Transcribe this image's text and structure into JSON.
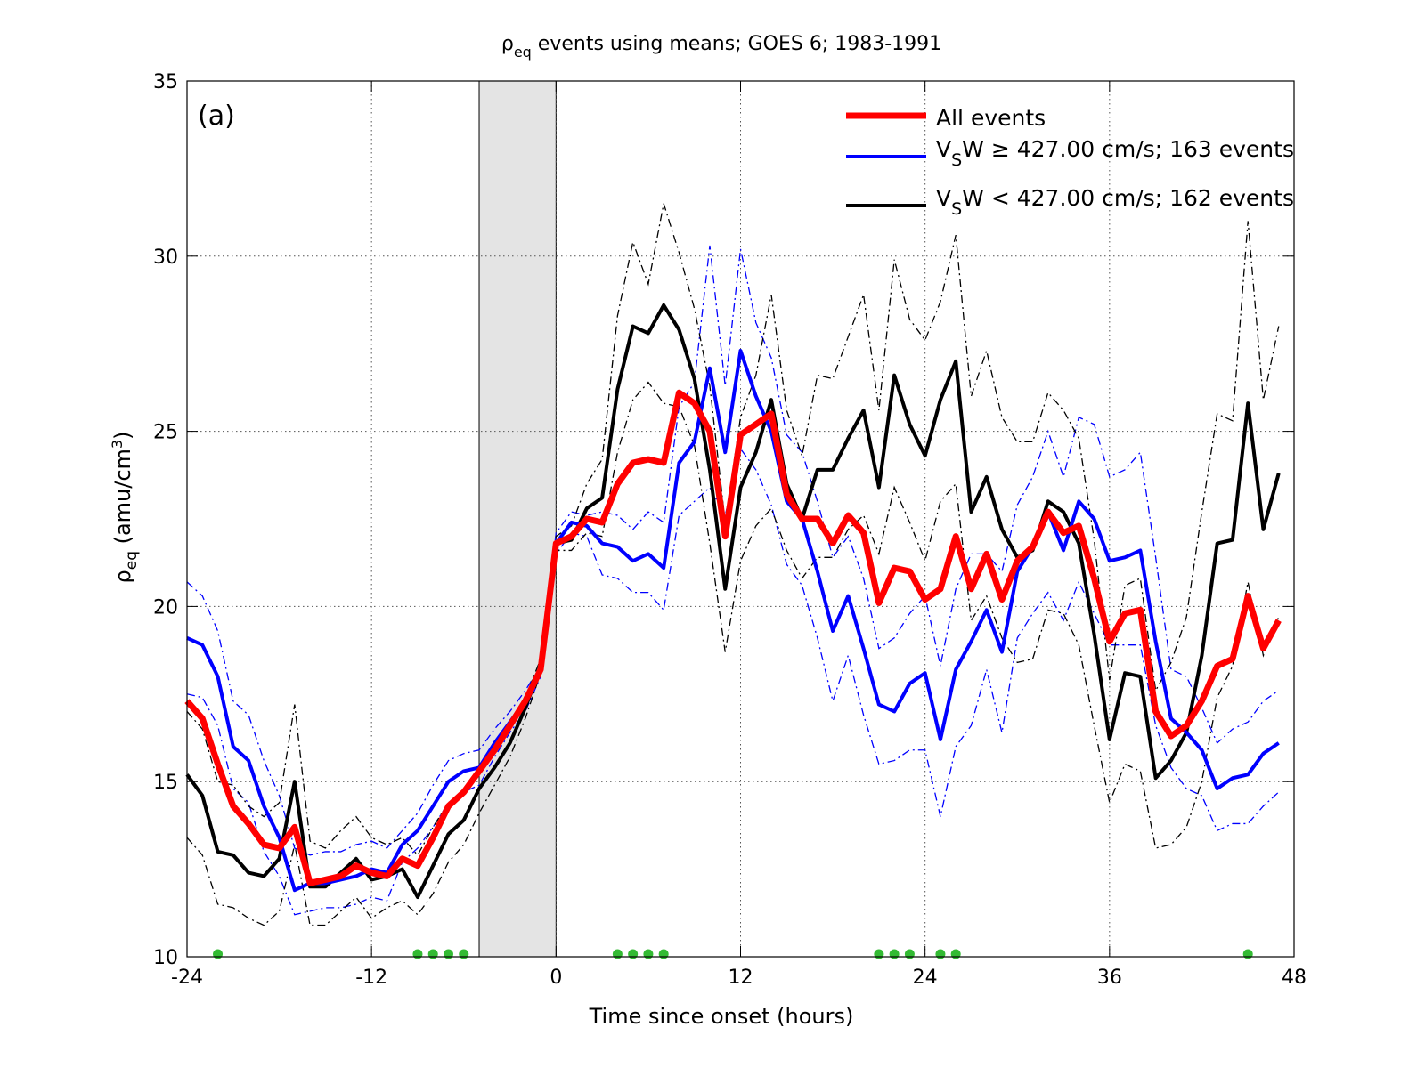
{
  "chart_data": {
    "type": "line",
    "title": "ρ_eq events using means; GOES 6; 1983-1991",
    "title_parts": {
      "symbol": "ρ",
      "sub": "eq",
      "rest": " events using means; GOES 6; 1983-1991"
    },
    "panel_label": "(a)",
    "xlabel": "Time since onset (hours)",
    "ylabel": "ρ_eq (amu/cm³)",
    "ylabel_parts": {
      "symbol": "ρ",
      "sub": "eq",
      "unit_pre": " (amu/cm",
      "sup": "3",
      "unit_post": ")"
    },
    "xlim": [
      -24,
      48
    ],
    "ylim": [
      10,
      35
    ],
    "xticks": [
      -24,
      -12,
      0,
      12,
      24,
      36,
      48
    ],
    "yticks": [
      10,
      15,
      20,
      25,
      30,
      35
    ],
    "grid": true,
    "legend_position": "top-right",
    "shaded_interval": [
      -5,
      0
    ],
    "marker_color": "#33bb33",
    "significance_markers_x": [
      -22,
      -9,
      -8,
      -7,
      -6,
      4,
      5,
      6,
      7,
      21,
      22,
      23,
      25,
      26,
      45
    ],
    "x": [
      -24,
      -23,
      -22,
      -21,
      -20,
      -19,
      -18,
      -17,
      -16,
      -15,
      -14,
      -13,
      -12,
      -11,
      -10,
      -9,
      -8,
      -7,
      -6,
      -5,
      -4,
      -3,
      -2,
      -1,
      0,
      1,
      2,
      3,
      4,
      5,
      6,
      7,
      8,
      9,
      10,
      11,
      12,
      13,
      14,
      15,
      16,
      17,
      18,
      19,
      20,
      21,
      22,
      23,
      24,
      25,
      26,
      27,
      28,
      29,
      30,
      31,
      32,
      33,
      34,
      35,
      36,
      37,
      38,
      39,
      40,
      41,
      42,
      43,
      44,
      45,
      46,
      47
    ],
    "series": [
      {
        "name": "All events",
        "color": "#ff0000",
        "style": "solid-thick",
        "values": [
          17.3,
          16.8,
          15.5,
          14.3,
          13.8,
          13.2,
          13.1,
          13.7,
          12.1,
          12.2,
          12.3,
          12.6,
          12.4,
          12.3,
          12.8,
          12.6,
          13.4,
          14.3,
          14.7,
          15.3,
          15.9,
          16.6,
          17.3,
          18.2,
          21.8,
          22.0,
          22.5,
          22.4,
          23.5,
          24.1,
          24.2,
          24.1,
          26.1,
          25.8,
          25.0,
          22.0,
          24.9,
          25.2,
          25.5,
          23.2,
          22.5,
          22.5,
          21.8,
          22.6,
          22.1,
          20.1,
          21.1,
          21.0,
          20.2,
          20.5,
          22.0,
          20.5,
          21.5,
          20.2,
          21.3,
          21.7,
          22.7,
          22.1,
          22.3,
          20.8,
          19.0,
          19.8,
          19.9,
          17.0,
          16.3,
          16.6,
          17.3,
          18.3,
          18.5,
          20.3,
          18.8,
          19.6
        ],
        "upper": null,
        "lower": null
      },
      {
        "name": "V_SW ≥ 427.00 cm/s; 163 events",
        "name_parts": {
          "pre": "V",
          "sub": "S",
          "post": "W  ≥ 427.00 cm/s; 163 events"
        },
        "color": "#0000ff",
        "style": "solid",
        "values": [
          19.1,
          18.9,
          18.0,
          16.0,
          15.6,
          14.3,
          13.4,
          11.9,
          12.1,
          12.1,
          12.2,
          12.3,
          12.5,
          12.4,
          13.2,
          13.6,
          14.3,
          15.0,
          15.3,
          15.4,
          16.1,
          16.7,
          17.3,
          18.2,
          21.8,
          22.4,
          22.3,
          21.8,
          21.7,
          21.3,
          21.5,
          21.1,
          24.1,
          24.7,
          26.8,
          24.4,
          27.3,
          26.0,
          25.0,
          23.0,
          22.5,
          21.0,
          19.3,
          20.3,
          18.8,
          17.2,
          17.0,
          17.8,
          18.1,
          16.2,
          18.2,
          19.0,
          19.9,
          18.7,
          21.0,
          21.7,
          22.7,
          21.6,
          23.0,
          22.5,
          21.3,
          21.4,
          21.6,
          19.0,
          16.8,
          16.4,
          15.9,
          14.8,
          15.1,
          15.2,
          15.8,
          16.1
        ],
        "upper": [
          20.7,
          20.3,
          19.3,
          17.3,
          16.9,
          15.6,
          14.6,
          13.1,
          12.9,
          13.0,
          13.0,
          13.2,
          13.3,
          13.1,
          13.6,
          14.1,
          14.9,
          15.6,
          15.8,
          15.9,
          16.5,
          17.0,
          17.6,
          18.3,
          22.1,
          22.7,
          22.6,
          22.7,
          22.6,
          22.2,
          22.7,
          22.4,
          25.7,
          26.4,
          30.3,
          26.3,
          30.2,
          28.1,
          27.1,
          24.9,
          24.4,
          23.0,
          21.4,
          22.0,
          20.8,
          18.8,
          19.1,
          19.8,
          20.3,
          18.3,
          20.5,
          21.5,
          21.5,
          21.0,
          22.9,
          23.7,
          25.0,
          23.7,
          25.4,
          25.2,
          23.7,
          23.9,
          24.4,
          21.4,
          18.2,
          18.0,
          17.1,
          16.1,
          16.5,
          16.7,
          17.3,
          17.6
        ],
        "lower": [
          17.5,
          17.4,
          16.6,
          14.8,
          14.4,
          13.0,
          12.3,
          11.2,
          11.3,
          11.4,
          11.4,
          11.5,
          11.7,
          11.6,
          12.7,
          13.1,
          13.7,
          14.4,
          14.7,
          14.9,
          15.7,
          16.4,
          17.0,
          18.0,
          21.5,
          22.1,
          22.0,
          20.9,
          20.8,
          20.4,
          20.4,
          19.9,
          22.6,
          23.0,
          23.4,
          22.6,
          24.5,
          23.9,
          22.9,
          21.2,
          20.6,
          19.1,
          17.3,
          18.6,
          16.9,
          15.5,
          15.6,
          15.9,
          15.9,
          14.0,
          16.0,
          16.6,
          18.2,
          16.4,
          19.1,
          19.8,
          20.4,
          19.6,
          20.7,
          19.8,
          18.9,
          18.9,
          18.9,
          16.6,
          15.4,
          14.8,
          14.6,
          13.6,
          13.8,
          13.8,
          14.3,
          14.7
        ]
      },
      {
        "name": "V_SW < 427.00 cm/s; 162 events",
        "name_parts": {
          "pre": "V",
          "sub": "S",
          "post": "W < 427.00 cm/s; 162 events"
        },
        "color": "#000000",
        "style": "solid",
        "values": [
          15.2,
          14.6,
          13.0,
          12.9,
          12.4,
          12.3,
          12.8,
          15.0,
          12.0,
          12.0,
          12.4,
          12.8,
          12.2,
          12.3,
          12.5,
          11.7,
          12.6,
          13.5,
          13.9,
          14.8,
          15.4,
          16.1,
          17.1,
          18.3,
          21.8,
          21.9,
          22.8,
          23.1,
          26.2,
          28.0,
          27.8,
          28.6,
          27.9,
          26.5,
          23.9,
          20.5,
          23.4,
          24.4,
          25.9,
          23.5,
          22.5,
          23.9,
          23.9,
          24.8,
          25.6,
          23.4,
          26.6,
          25.2,
          24.3,
          25.9,
          27.0,
          22.7,
          23.7,
          22.2,
          21.4,
          21.6,
          23.0,
          22.7,
          21.8,
          19.2,
          16.2,
          18.1,
          18.0,
          15.1,
          15.6,
          16.4,
          18.6,
          21.8,
          21.9,
          25.8,
          22.2,
          23.8
        ],
        "upper": [
          17.0,
          16.5,
          15.0,
          14.9,
          14.3,
          14.0,
          14.4,
          17.2,
          13.3,
          13.1,
          13.6,
          14.0,
          13.4,
          13.2,
          13.4,
          12.9,
          13.7,
          14.4,
          14.7,
          15.4,
          15.9,
          16.5,
          17.4,
          18.5,
          22.0,
          22.3,
          23.5,
          24.2,
          28.3,
          30.4,
          29.2,
          31.5,
          30.1,
          28.5,
          26.3,
          22.4,
          25.4,
          26.6,
          28.9,
          25.6,
          24.3,
          26.6,
          26.5,
          27.7,
          28.9,
          25.6,
          29.9,
          28.2,
          27.6,
          28.7,
          30.6,
          26.0,
          27.3,
          25.4,
          24.7,
          24.7,
          26.1,
          25.6,
          24.8,
          21.9,
          17.9,
          20.6,
          20.8,
          17.6,
          18.4,
          19.7,
          22.7,
          25.5,
          25.3,
          31.0,
          25.9,
          28.0
        ],
        "lower": [
          13.4,
          12.9,
          11.5,
          11.4,
          11.1,
          10.9,
          11.3,
          13.2,
          10.9,
          10.9,
          11.3,
          11.7,
          11.1,
          11.4,
          11.6,
          11.2,
          11.8,
          12.7,
          13.2,
          14.1,
          14.9,
          15.7,
          16.8,
          18.1,
          21.6,
          21.6,
          22.1,
          22.0,
          24.4,
          25.9,
          26.4,
          25.8,
          25.7,
          24.6,
          21.8,
          18.7,
          21.3,
          22.3,
          22.8,
          21.6,
          20.8,
          21.4,
          21.4,
          22.2,
          22.6,
          21.5,
          23.4,
          22.4,
          21.3,
          23.0,
          23.5,
          19.6,
          20.3,
          19.1,
          18.4,
          18.5,
          19.9,
          19.8,
          18.9,
          16.6,
          14.4,
          15.5,
          15.3,
          13.1,
          13.2,
          13.7,
          15.0,
          17.4,
          18.3,
          20.7,
          18.6,
          19.7
        ]
      }
    ]
  }
}
